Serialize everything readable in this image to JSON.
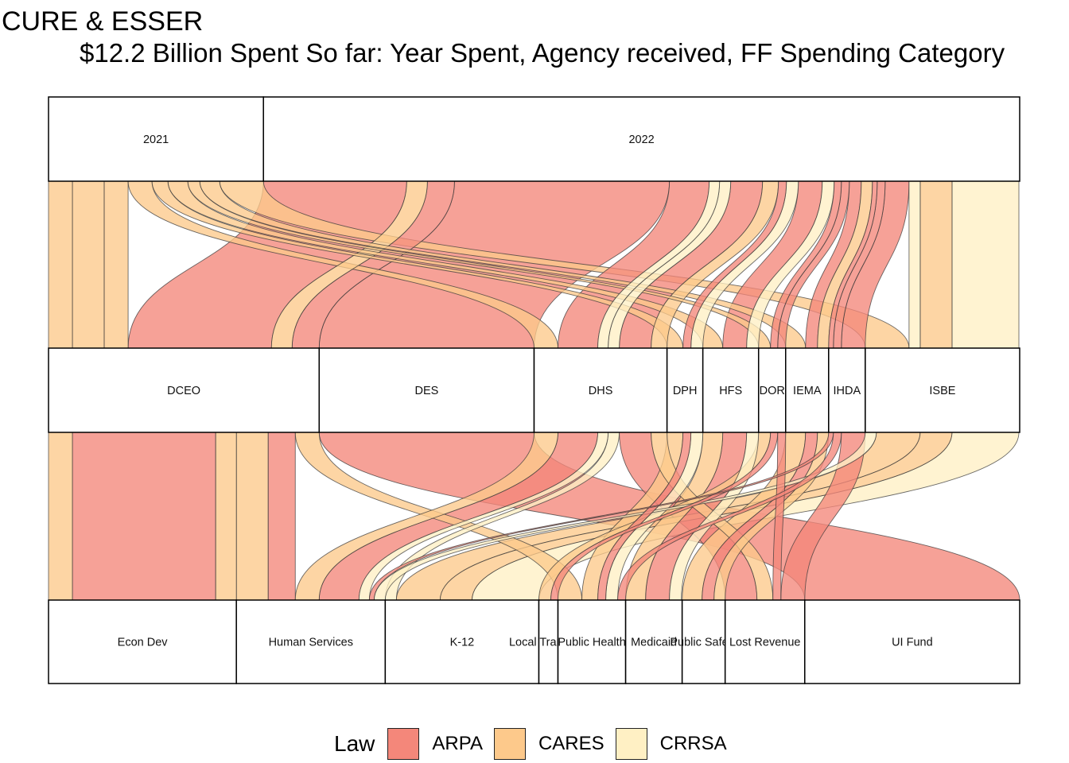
{
  "title": "CURE & ESSER",
  "subtitle": "$12.2 Billion Spent So far: Year Spent, Agency received, FF Spending Category",
  "colors": {
    "ARPA": "#f4877a",
    "CARES": "#fdc98b",
    "CRRSA": "#fff0c4"
  },
  "legend": {
    "title": "Law",
    "items": [
      {
        "key": "ARPA",
        "label": "ARPA"
      },
      {
        "key": "CARES",
        "label": "CARES"
      },
      {
        "key": "CRRSA",
        "label": "CRRSA"
      }
    ]
  },
  "chart_data": {
    "type": "alluvial",
    "total": 12.2,
    "total_unit": "$ Billion",
    "axes": [
      {
        "name": "Year Spent",
        "strata": [
          {
            "label": "2021",
            "value": 2.7
          },
          {
            "label": "2022",
            "value": 9.5
          }
        ]
      },
      {
        "name": "Agency received",
        "strata": [
          {
            "label": "DCEO",
            "value": 3.4
          },
          {
            "label": "DES",
            "value": 2.7
          },
          {
            "label": "DHS",
            "value": 1.67
          },
          {
            "label": "DPH",
            "value": 0.45
          },
          {
            "label": "HFS",
            "value": 0.7
          },
          {
            "label": "DOR",
            "value": 0.34
          },
          {
            "label": "IEMA",
            "value": 0.54
          },
          {
            "label": "IHDA",
            "value": 0.46
          },
          {
            "label": "ISBE",
            "value": 1.94
          }
        ]
      },
      {
        "name": "FF Spending Category",
        "strata": [
          {
            "label": "Econ Dev",
            "value": 2.36
          },
          {
            "label": "Human Services",
            "value": 1.87
          },
          {
            "label": "K-12",
            "value": 1.93
          },
          {
            "label": "Local Transfers",
            "value": 0.24
          },
          {
            "label": "Public Health",
            "value": 0.85
          },
          {
            "label": "Medicaid",
            "value": 0.71
          },
          {
            "label": "Public Safety",
            "value": 0.54
          },
          {
            "label": "Lost Revenue",
            "value": 1.0
          },
          {
            "label": "UI Fund",
            "value": 2.7
          }
        ]
      }
    ],
    "flows": [
      {
        "year": "2021",
        "agency": "DCEO",
        "category": "Econ Dev",
        "law": "CARES",
        "value": 0.3
      },
      {
        "year": "2021",
        "agency": "DCEO",
        "category": "Human Services",
        "law": "CARES",
        "value": 0.4
      },
      {
        "year": "2021",
        "agency": "DCEO",
        "category": "Public Health",
        "law": "CARES",
        "value": 0.3
      },
      {
        "year": "2021",
        "agency": "DHS",
        "category": "Human Services",
        "law": "CARES",
        "value": 0.3
      },
      {
        "year": "2021",
        "agency": "DPH",
        "category": "Public Health",
        "law": "CARES",
        "value": 0.2
      },
      {
        "year": "2021",
        "agency": "HFS",
        "category": "Medicaid",
        "law": "CARES",
        "value": 0.25
      },
      {
        "year": "2021",
        "agency": "DOR",
        "category": "Local Transfers",
        "law": "CARES",
        "value": 0.15
      },
      {
        "year": "2021",
        "agency": "IEMA",
        "category": "Public Safety",
        "law": "CARES",
        "value": 0.25
      },
      {
        "year": "2021",
        "agency": "ISBE",
        "category": "K-12",
        "law": "CARES",
        "value": 0.55
      },
      {
        "year": "2022",
        "agency": "DCEO",
        "category": "Econ Dev",
        "law": "ARPA",
        "value": 1.8
      },
      {
        "year": "2022",
        "agency": "DCEO",
        "category": "Econ Dev",
        "law": "CARES",
        "value": 0.26
      },
      {
        "year": "2022",
        "agency": "DCEO",
        "category": "Human Services",
        "law": "ARPA",
        "value": 0.34
      },
      {
        "year": "2022",
        "agency": "DES",
        "category": "UI Fund",
        "law": "ARPA",
        "value": 2.7
      },
      {
        "year": "2022",
        "agency": "DHS",
        "category": "Human Services",
        "law": "ARPA",
        "value": 0.5
      },
      {
        "year": "2022",
        "agency": "DHS",
        "category": "Human Services",
        "law": "CRRSA",
        "value": 0.13
      },
      {
        "year": "2022",
        "agency": "DHS",
        "category": "Lost Revenue",
        "law": "ARPA",
        "value": 0.4
      },
      {
        "year": "2022",
        "agency": "DHS",
        "category": "Lost Revenue",
        "law": "CARES",
        "value": 0.2
      },
      {
        "year": "2022",
        "agency": "DHS",
        "category": "K-12",
        "law": "CRRSA",
        "value": 0.14
      },
      {
        "year": "2022",
        "agency": "DPH",
        "category": "Public Health",
        "law": "ARPA",
        "value": 0.1
      },
      {
        "year": "2022",
        "agency": "DPH",
        "category": "Public Health",
        "law": "CRRSA",
        "value": 0.15
      },
      {
        "year": "2022",
        "agency": "HFS",
        "category": "Medicaid",
        "law": "ARPA",
        "value": 0.3
      },
      {
        "year": "2022",
        "agency": "HFS",
        "category": "Medicaid",
        "law": "CRRSA",
        "value": 0.15
      },
      {
        "year": "2022",
        "agency": "DOR",
        "category": "Local Transfers",
        "law": "ARPA",
        "value": 0.09
      },
      {
        "year": "2022",
        "agency": "DOR",
        "category": "Lost Revenue",
        "law": "ARPA",
        "value": 0.1
      },
      {
        "year": "2022",
        "agency": "IEMA",
        "category": "Public Safety",
        "law": "ARPA",
        "value": 0.15
      },
      {
        "year": "2022",
        "agency": "IEMA",
        "category": "Public Safety",
        "law": "CARES",
        "value": 0.14
      },
      {
        "year": "2022",
        "agency": "IHDA",
        "category": "Lost Revenue",
        "law": "ARPA",
        "value": 0.3
      },
      {
        "year": "2022",
        "agency": "IHDA",
        "category": "Public Health",
        "law": "ARPA",
        "value": 0.1
      },
      {
        "year": "2022",
        "agency": "IHDA",
        "category": "Human Services",
        "law": "ARPA",
        "value": 0.06
      },
      {
        "year": "2022",
        "agency": "ISBE",
        "category": "K-12",
        "law": "CARES",
        "value": 0.4
      },
      {
        "year": "2022",
        "agency": "ISBE",
        "category": "K-12",
        "law": "CRRSA",
        "value": 0.84
      },
      {
        "year": "2022",
        "agency": "ISBE",
        "category": "Human Services",
        "law": "CRRSA",
        "value": 0.14
      }
    ]
  }
}
